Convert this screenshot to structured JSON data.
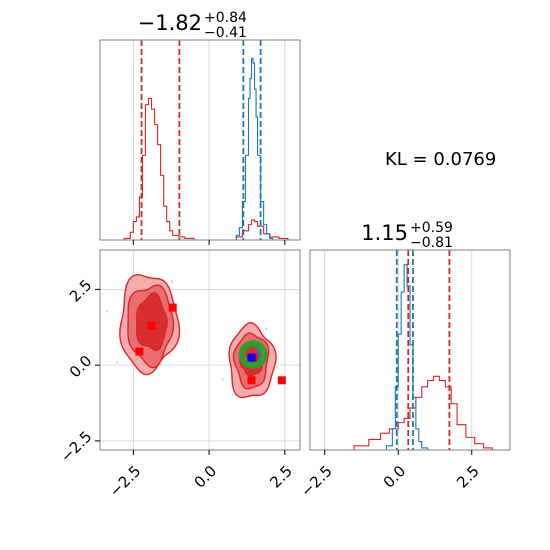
{
  "chart_data": [
    {
      "type": "line",
      "panel": "histogram-param-1",
      "title_value": "−1.82",
      "title_upper": "+0.84",
      "title_lower": "−0.41",
      "xlim": [
        -3.6,
        3.0
      ],
      "xticks": [
        -2.5,
        0.0,
        2.5
      ],
      "grid": true,
      "series": [
        {
          "color": "#d62728",
          "x": [
            -3.0,
            -2.8,
            -2.6,
            -2.5,
            -2.4,
            -2.3,
            -2.2,
            -2.1,
            -2.0,
            -1.9,
            -1.8,
            -1.7,
            -1.6,
            -1.5,
            -1.4,
            -1.3,
            -1.2,
            -1.0,
            -0.8,
            -0.5,
            0.0,
            0.5,
            0.9,
            1.1,
            1.3,
            1.4,
            1.5,
            1.6,
            1.8,
            2.0,
            2.3,
            2.6
          ],
          "y": [
            0.0,
            0.01,
            0.05,
            0.12,
            0.15,
            0.28,
            0.55,
            0.88,
            0.92,
            0.85,
            0.75,
            0.62,
            0.42,
            0.22,
            0.12,
            0.06,
            0.03,
            0.02,
            0.01,
            0.0,
            0.0,
            0.0,
            0.02,
            0.06,
            0.1,
            0.13,
            0.12,
            0.09,
            0.04,
            0.02,
            0.01,
            0.0
          ]
        },
        {
          "color": "#1f77b4",
          "x": [
            0.7,
            0.9,
            1.0,
            1.1,
            1.2,
            1.3,
            1.35,
            1.4,
            1.45,
            1.5,
            1.55,
            1.6,
            1.7,
            1.8,
            1.9,
            2.0,
            2.1
          ],
          "y": [
            0.0,
            0.03,
            0.08,
            0.25,
            0.55,
            0.92,
            1.05,
            1.18,
            1.15,
            0.98,
            0.8,
            0.55,
            0.25,
            0.1,
            0.04,
            0.01,
            0.0
          ]
        }
      ],
      "vlines": [
        {
          "x": -2.23,
          "color": "#d62728"
        },
        {
          "x": -0.98,
          "color": "#d62728"
        },
        {
          "x": 1.13,
          "color": "#1f77b4"
        },
        {
          "x": 1.7,
          "color": "#1f77b4"
        }
      ]
    },
    {
      "type": "scatter",
      "panel": "joint-param-1-vs-param-2",
      "xlim": [
        -3.6,
        3.0
      ],
      "ylim": [
        -2.8,
        3.8
      ],
      "xticks": [
        -2.5,
        0.0,
        2.5
      ],
      "yticks": [
        -2.5,
        0.0,
        2.5
      ],
      "grid": true,
      "contours": [
        {
          "color": "#d62728",
          "fill": "#f4a3a5",
          "cx": -2.0,
          "cy": 1.4,
          "rx": 0.95,
          "ry": 1.6,
          "opacity": 0.9
        },
        {
          "color": "#d62728",
          "fill": "#e8666a",
          "cx": -1.95,
          "cy": 1.35,
          "rx": 0.75,
          "ry": 1.3,
          "opacity": 0.9
        },
        {
          "color": "#d62728",
          "fill": "#d62728",
          "cx": -1.9,
          "cy": 1.4,
          "rx": 0.5,
          "ry": 0.9,
          "opacity": 0.9
        },
        {
          "color": "#d62728",
          "fill": "#f4a3a5",
          "cx": 1.4,
          "cy": 0.1,
          "rx": 0.75,
          "ry": 1.2,
          "opacity": 0.9
        },
        {
          "color": "#d62728",
          "fill": "#e8666a",
          "cx": 1.4,
          "cy": 0.15,
          "rx": 0.55,
          "ry": 0.9,
          "opacity": 0.9
        },
        {
          "color": "#d62728",
          "fill": "#d62728",
          "cx": 1.4,
          "cy": 0.2,
          "rx": 0.35,
          "ry": 0.55,
          "opacity": 0.9
        },
        {
          "color": "#1f77b4",
          "fill": "none",
          "cx": 1.4,
          "cy": 0.3,
          "rx": 0.25,
          "ry": 0.35,
          "opacity": 1.0
        },
        {
          "color": "#2ca02c",
          "fill": "none",
          "cx": 1.45,
          "cy": 0.35,
          "rx": 0.42,
          "ry": 0.42,
          "opacity": 1.0
        },
        {
          "color": "#2ca02c",
          "fill": "none",
          "cx": 1.45,
          "cy": 0.35,
          "rx": 0.3,
          "ry": 0.32,
          "opacity": 1.0
        }
      ],
      "points": [
        {
          "x": -1.2,
          "y": 1.9,
          "color": "#ff0000"
        },
        {
          "x": -1.9,
          "y": 1.3,
          "color": "#ff0000"
        },
        {
          "x": -2.3,
          "y": 0.45,
          "color": "#ff0000"
        },
        {
          "x": 1.4,
          "y": -0.5,
          "color": "#ff0000"
        },
        {
          "x": 2.4,
          "y": -0.5,
          "color": "#ff0000"
        },
        {
          "x": 1.45,
          "y": 0.25,
          "color": "#ff0000"
        },
        {
          "x": 1.4,
          "y": 0.25,
          "color": "#0000ff"
        }
      ]
    },
    {
      "type": "line",
      "panel": "histogram-param-2",
      "title_value": "1.15",
      "title_upper": "+0.59",
      "title_lower": "−0.81",
      "xlim": [
        -3.0,
        3.8
      ],
      "xticks": [
        -2.5,
        0.0,
        2.5
      ],
      "grid": true,
      "series": [
        {
          "color": "#d62728",
          "x": [
            -2.0,
            -1.5,
            -1.0,
            -0.6,
            -0.3,
            0.0,
            0.2,
            0.4,
            0.6,
            0.8,
            1.0,
            1.2,
            1.4,
            1.6,
            1.8,
            2.0,
            2.3,
            2.6,
            2.9,
            3.2
          ],
          "y": [
            0.0,
            0.02,
            0.05,
            0.08,
            0.1,
            0.13,
            0.15,
            0.2,
            0.25,
            0.3,
            0.33,
            0.35,
            0.33,
            0.3,
            0.22,
            0.12,
            0.06,
            0.03,
            0.01,
            0.0
          ]
        },
        {
          "color": "#1f77b4",
          "x": [
            -0.6,
            -0.4,
            -0.2,
            -0.1,
            0.0,
            0.1,
            0.2,
            0.3,
            0.4,
            0.5,
            0.6,
            0.7,
            0.8,
            1.0
          ],
          "y": [
            0.0,
            0.02,
            0.1,
            0.3,
            0.55,
            0.75,
            0.88,
            0.78,
            0.5,
            0.25,
            0.1,
            0.04,
            0.01,
            0.0
          ]
        }
      ],
      "vlines": [
        {
          "x": 0.34,
          "color": "#d62728"
        },
        {
          "x": 1.74,
          "color": "#d62728"
        },
        {
          "x": -0.05,
          "color": "#1f77b4"
        },
        {
          "x": 0.5,
          "color": "#1f77b4"
        }
      ]
    }
  ],
  "kl_label": "KL = 0.0769",
  "tick_labels": {
    "x": [
      "−2.5",
      "0.0",
      "2.5"
    ],
    "y": [
      "−2.5",
      "0.0",
      "2.5"
    ]
  }
}
